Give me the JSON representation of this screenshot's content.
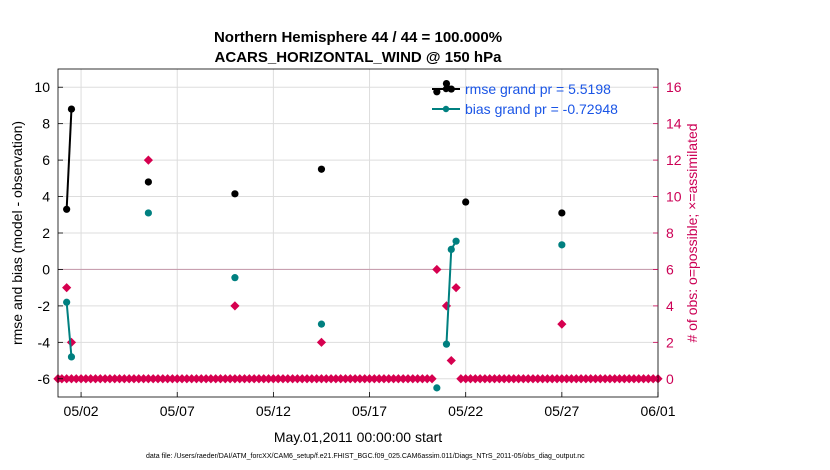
{
  "chart_data": {
    "type": "line",
    "title": "Northern Hemisphere 44 / 44 = 100.000%",
    "subtitle": "ACARS_HORIZONTAL_WIND @ 150 hPa",
    "xlabel": "May.01,2011 00:00:00 start",
    "ylabel": "rmse and bias (model - observation)",
    "ylabel_right": "# of obs: o=possible; ×=assimilated",
    "xlim": [
      0.3,
      31.5
    ],
    "ylim": [
      -7,
      11
    ],
    "ylim_right": [
      -1,
      17
    ],
    "x_ticks": [
      1.5,
      6.5,
      11.5,
      16.5,
      21.5,
      26.5,
      31.5
    ],
    "x_tick_labels": [
      "05/02",
      "05/07",
      "05/12",
      "05/17",
      "05/22",
      "05/27",
      "06/01"
    ],
    "y_ticks": [
      -6,
      -4,
      -2,
      0,
      2,
      4,
      6,
      8,
      10
    ],
    "y_tick_labels": [
      "-6",
      "-4",
      "-2",
      "0",
      "2",
      "4",
      "6",
      "8",
      "10"
    ],
    "y_right_ticks": [
      0,
      2,
      4,
      6,
      8,
      10,
      12,
      14,
      16
    ],
    "y_right_tick_labels": [
      "0",
      "2",
      "4",
      "6",
      "8",
      "10",
      "12",
      "14",
      "16"
    ],
    "grid": true,
    "legend_position": "top-right",
    "series": [
      {
        "name": "rmse grand pr = 5.5198",
        "axis": "left",
        "color": "#000000",
        "points": [
          [
            0.75,
            3.3
          ],
          [
            1.0,
            8.8
          ],
          [
            5.0,
            4.8
          ],
          [
            9.5,
            4.15
          ],
          [
            14.0,
            5.5
          ],
          [
            20.0,
            9.75
          ],
          [
            20.5,
            10.2
          ],
          [
            20.75,
            9.9
          ],
          [
            21.5,
            3.7
          ],
          [
            26.5,
            3.1
          ]
        ],
        "segments": [
          [
            [
              0.75,
              3.3
            ],
            [
              1.0,
              8.8
            ]
          ],
          [
            [
              20.5,
              10.2
            ],
            [
              20.75,
              9.9
            ]
          ]
        ]
      },
      {
        "name": "bias grand pr = -0.72948",
        "axis": "left",
        "color": "#008080",
        "points": [
          [
            0.75,
            -1.8
          ],
          [
            1.0,
            -4.8
          ],
          [
            5.0,
            3.1
          ],
          [
            9.5,
            -0.45
          ],
          [
            14.0,
            -3.0
          ],
          [
            20.0,
            -6.5
          ],
          [
            20.5,
            -4.1
          ],
          [
            20.75,
            1.1
          ],
          [
            21.0,
            1.55
          ],
          [
            26.5,
            1.35
          ]
        ],
        "segments": [
          [
            [
              0.75,
              -1.8
            ],
            [
              1.0,
              -4.8
            ]
          ],
          [
            [
              20.5,
              -4.1
            ],
            [
              20.75,
              1.1
            ],
            [
              21.0,
              1.55
            ]
          ]
        ]
      },
      {
        "name": "obs possible / assimilated",
        "axis": "right",
        "color": "#d6004f",
        "nonzero_points": [
          [
            0.75,
            5
          ],
          [
            1.0,
            2
          ],
          [
            5.0,
            12
          ],
          [
            9.5,
            4
          ],
          [
            14.0,
            2
          ],
          [
            20.0,
            6
          ],
          [
            20.5,
            4
          ],
          [
            20.75,
            1
          ],
          [
            21.0,
            5
          ],
          [
            26.5,
            3
          ]
        ],
        "zero_x_start": 0.0,
        "zero_x_end": 31.5,
        "zero_x_step": 0.25,
        "zero_gaps": [
          [
            19.9,
            21.1
          ]
        ]
      }
    ],
    "legend": [
      "rmse grand pr = 5.5198",
      "bias grand pr = -0.72948"
    ]
  },
  "footer": "data file: /Users/raeder/DAI/ATM_forcXX/CAM6_setup/f.e21.FHIST_BGC.f09_025.CAM6assim.011/Diags_NTrS_2011-05/obs_diag_output.nc"
}
